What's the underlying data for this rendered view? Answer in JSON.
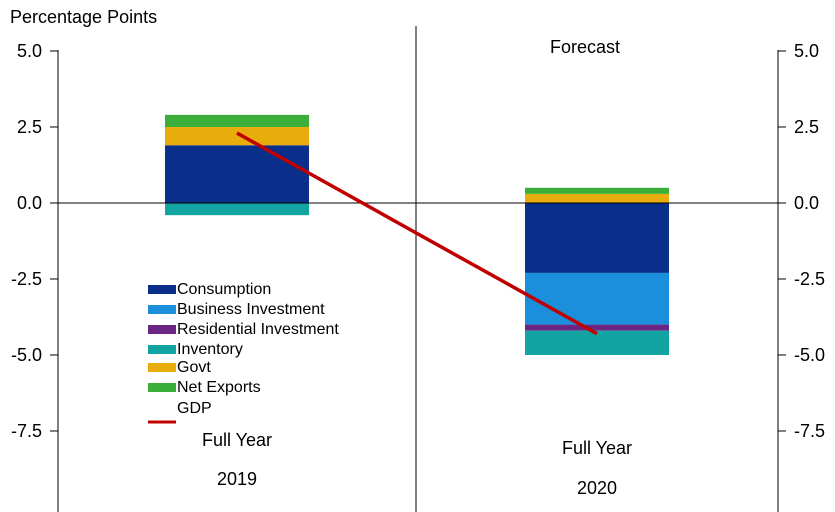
{
  "chart_data": {
    "type": "bar",
    "stacked": true,
    "y_unit_label": "Percentage Points",
    "annotation": "Forecast",
    "ylim": [
      -10,
      5
    ],
    "yticks": [
      5.0,
      2.5,
      0.0,
      -2.5,
      -5.0,
      -7.5
    ],
    "ytick_labels": [
      "5.0",
      "2.5",
      "0.0",
      "-2.5",
      "-5.0",
      "-7.5"
    ],
    "categories": [
      {
        "line1": "Full Year",
        "line2": "2019"
      },
      {
        "line1": "Full Year",
        "line2": "2020"
      }
    ],
    "series": [
      {
        "name": "Consumption",
        "color": "#0a2f8a",
        "values": [
          1.9,
          -2.3
        ]
      },
      {
        "name": "Business Investment",
        "color": "#1b8fdb",
        "values": [
          0.0,
          -1.7
        ]
      },
      {
        "name": "Residential Investment",
        "color": "#6b2583",
        "values": [
          0.0,
          -0.2
        ]
      },
      {
        "name": "Inventory",
        "color": "#12a3a3",
        "values": [
          -0.4,
          -0.8
        ]
      },
      {
        "name": "Govt",
        "color": "#e8ac0c",
        "values": [
          0.6,
          0.3
        ]
      },
      {
        "name": "Net Exports",
        "color": "#3cae3a",
        "values": [
          0.4,
          0.2
        ]
      }
    ],
    "line_series": {
      "name": "GDP",
      "color": "#c00000",
      "values": [
        2.3,
        -4.3
      ]
    },
    "grid": false,
    "legend_position": "lower-left"
  }
}
